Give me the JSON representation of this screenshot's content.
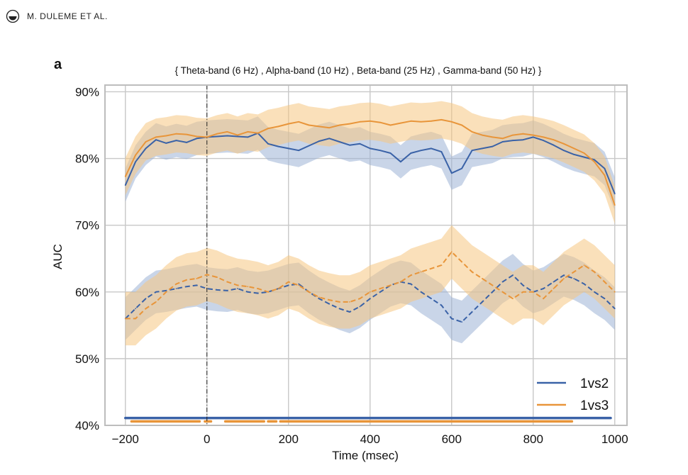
{
  "header": {
    "running_head": "M. DULEME ET AL.",
    "logo_icon": "publisher-logo-icon"
  },
  "panel_label": "a",
  "chart_data": {
    "type": "line",
    "title": "{ Theta-band (6 Hz) , Alpha-band (10 Hz) , Beta-band (25 Hz) , Gamma-band (50 Hz) }",
    "xlabel": "Time (msec)",
    "ylabel": "AUC",
    "xlim": [
      -250,
      1030
    ],
    "ylim": [
      0.4,
      0.91
    ],
    "xticks": [
      -200,
      0,
      200,
      400,
      600,
      800,
      1000
    ],
    "xtick_labels": [
      "−200",
      "0",
      "200",
      "400",
      "600",
      "800",
      "1000"
    ],
    "yticks": [
      0.4,
      0.5,
      0.6,
      0.7,
      0.8,
      0.9
    ],
    "ytick_labels": [
      "40%",
      "50%",
      "60%",
      "70%",
      "80%",
      "90%"
    ],
    "grid": true,
    "legend_position": "bottom-right",
    "onset_marker_x": 0,
    "colors": {
      "1vs2": "#3a62a7",
      "1vs3": "#e8953a",
      "band_1vs2": "#9db3d6",
      "band_1vs3": "#f5c682",
      "grid": "#c8c8c8",
      "frame": "#bdbdbd"
    },
    "x": [
      -200,
      -175,
      -150,
      -125,
      -100,
      -75,
      -50,
      -25,
      0,
      25,
      50,
      75,
      100,
      125,
      150,
      175,
      200,
      225,
      250,
      275,
      300,
      325,
      350,
      375,
      400,
      425,
      450,
      475,
      500,
      525,
      550,
      575,
      600,
      625,
      650,
      675,
      700,
      725,
      750,
      775,
      800,
      825,
      850,
      875,
      900,
      925,
      950,
      975,
      1000
    ],
    "series": [
      {
        "name": "1vs2",
        "style": "solid",
        "color": "#3a62a7",
        "band_width": 0.025,
        "values": [
          0.76,
          0.795,
          0.815,
          0.828,
          0.823,
          0.827,
          0.824,
          0.83,
          0.832,
          0.833,
          0.834,
          0.833,
          0.832,
          0.838,
          0.822,
          0.818,
          0.815,
          0.812,
          0.819,
          0.826,
          0.83,
          0.825,
          0.82,
          0.822,
          0.815,
          0.812,
          0.808,
          0.795,
          0.808,
          0.812,
          0.815,
          0.81,
          0.778,
          0.785,
          0.812,
          0.815,
          0.818,
          0.825,
          0.827,
          0.828,
          0.832,
          0.827,
          0.82,
          0.812,
          0.806,
          0.802,
          0.798,
          0.785,
          0.747
        ]
      },
      {
        "name": "1vs3",
        "style": "solid",
        "color": "#e8953a",
        "band_width": 0.028,
        "values": [
          0.773,
          0.805,
          0.825,
          0.832,
          0.834,
          0.837,
          0.836,
          0.833,
          0.832,
          0.837,
          0.84,
          0.835,
          0.84,
          0.838,
          0.845,
          0.848,
          0.852,
          0.855,
          0.85,
          0.848,
          0.846,
          0.85,
          0.852,
          0.855,
          0.856,
          0.854,
          0.85,
          0.853,
          0.856,
          0.855,
          0.856,
          0.858,
          0.855,
          0.85,
          0.84,
          0.835,
          0.832,
          0.83,
          0.835,
          0.837,
          0.835,
          0.832,
          0.828,
          0.822,
          0.815,
          0.808,
          0.795,
          0.775,
          0.73
        ]
      },
      {
        "name": "1vs2 (dashed)",
        "style": "dashed",
        "color": "#3a62a7",
        "band_width": 0.032,
        "values": [
          0.56,
          0.575,
          0.59,
          0.6,
          0.602,
          0.605,
          0.608,
          0.61,
          0.605,
          0.603,
          0.602,
          0.605,
          0.6,
          0.598,
          0.6,
          0.605,
          0.61,
          0.612,
          0.6,
          0.59,
          0.582,
          0.575,
          0.57,
          0.578,
          0.59,
          0.6,
          0.61,
          0.615,
          0.612,
          0.6,
          0.59,
          0.58,
          0.56,
          0.555,
          0.57,
          0.585,
          0.6,
          0.615,
          0.625,
          0.61,
          0.6,
          0.605,
          0.615,
          0.625,
          0.62,
          0.612,
          0.6,
          0.59,
          0.575
        ]
      },
      {
        "name": "1vs3 (dashed)",
        "style": "dashed",
        "color": "#e8953a",
        "band_width": 0.04,
        "values": [
          0.56,
          0.56,
          0.575,
          0.585,
          0.6,
          0.612,
          0.618,
          0.62,
          0.626,
          0.622,
          0.615,
          0.61,
          0.608,
          0.605,
          0.6,
          0.605,
          0.615,
          0.61,
          0.6,
          0.592,
          0.588,
          0.585,
          0.585,
          0.59,
          0.6,
          0.605,
          0.61,
          0.615,
          0.625,
          0.63,
          0.635,
          0.64,
          0.66,
          0.645,
          0.63,
          0.62,
          0.61,
          0.6,
          0.59,
          0.6,
          0.6,
          0.59,
          0.605,
          0.62,
          0.63,
          0.64,
          0.63,
          0.615,
          0.6
        ]
      }
    ],
    "legend": [
      {
        "label": "1vs2",
        "color": "#3a62a7"
      },
      {
        "label": "1vs3",
        "color": "#e8953a"
      }
    ],
    "significance_bars": [
      {
        "series": "1vs2",
        "color": "#3a62a7",
        "y": 0.411,
        "segments": [
          [
            -200,
            990
          ]
        ]
      },
      {
        "series": "1vs3",
        "color": "#e8953a",
        "y": 0.406,
        "segments": [
          [
            -185,
            -18
          ],
          [
            -5,
            10
          ],
          [
            45,
            140
          ],
          [
            150,
            170
          ],
          [
            180,
            895
          ]
        ]
      }
    ]
  }
}
